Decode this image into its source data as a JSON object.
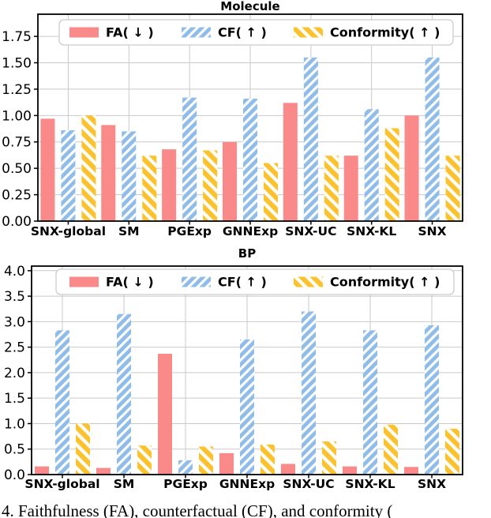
{
  "figure": {
    "caption": "4.  Faithfulness (FA), counterfactual (CF), and conformity ("
  },
  "colors": {
    "fa": "#FA8A8A",
    "cf": "#8FBCE8",
    "conformity": "#FBC22D",
    "grid": "#C9C9C9",
    "frame": "#000000",
    "legend_border": "#CCCCCC",
    "background": "#FFFFFF"
  },
  "chart_data": [
    {
      "type": "bar",
      "title": "Molecule",
      "xlabel": "",
      "ylabel": "",
      "grid": true,
      "legend_position": "upper center",
      "categories": [
        "SNX-global",
        "SM",
        "PGExp",
        "GNNExp",
        "SNX-UC",
        "SNX-KL",
        "SNX"
      ],
      "ylim": [
        0,
        1.96
      ],
      "yticks": [
        0.0,
        0.25,
        0.5,
        0.75,
        1.0,
        1.25,
        1.5,
        1.75
      ],
      "ytick_labels": [
        "0.00",
        "0.25",
        "0.50",
        "0.75",
        "1.00",
        "1.25",
        "1.50",
        "1.75"
      ],
      "series": [
        {
          "name": "FA( ↓ )",
          "color": "#FA8A8A",
          "hatch": "none",
          "values": [
            0.97,
            0.91,
            0.68,
            0.75,
            1.12,
            0.62,
            1.0
          ]
        },
        {
          "name": "CF( ↑ )",
          "color": "#8FBCE8",
          "hatch": "forward-slash",
          "values": [
            0.86,
            0.85,
            1.17,
            1.16,
            1.55,
            1.06,
            1.55
          ]
        },
        {
          "name": "Conformity( ↑ )",
          "color": "#FBC22D",
          "hatch": "back-slash",
          "values": [
            1.0,
            0.62,
            0.67,
            0.55,
            0.62,
            0.88,
            0.62
          ]
        }
      ]
    },
    {
      "type": "bar",
      "title": "BP",
      "xlabel": "",
      "ylabel": "",
      "grid": true,
      "legend_position": "upper center",
      "categories": [
        "SNX-global",
        "SM",
        "PGExp",
        "GNNExp",
        "SNX-UC",
        "SNX-KL",
        "SNX"
      ],
      "ylim": [
        0,
        4.09
      ],
      "yticks": [
        0.0,
        0.5,
        1.0,
        1.5,
        2.0,
        2.5,
        3.0,
        3.5,
        4.0
      ],
      "ytick_labels": [
        "0.0",
        "0.5",
        "1.0",
        "1.5",
        "2.0",
        "2.5",
        "3.0",
        "3.5",
        "4.0"
      ],
      "series": [
        {
          "name": "FA( ↓ )",
          "color": "#FA8A8A",
          "hatch": "none",
          "values": [
            0.16,
            0.13,
            2.37,
            0.42,
            0.21,
            0.16,
            0.15
          ]
        },
        {
          "name": "CF( ↑ )",
          "color": "#8FBCE8",
          "hatch": "forward-slash",
          "values": [
            2.83,
            3.15,
            0.28,
            2.65,
            3.2,
            2.83,
            2.93
          ]
        },
        {
          "name": "Conformity( ↑ )",
          "color": "#FBC22D",
          "hatch": "back-slash",
          "values": [
            1.0,
            0.57,
            0.55,
            0.59,
            0.65,
            0.98,
            0.9
          ]
        }
      ]
    }
  ]
}
